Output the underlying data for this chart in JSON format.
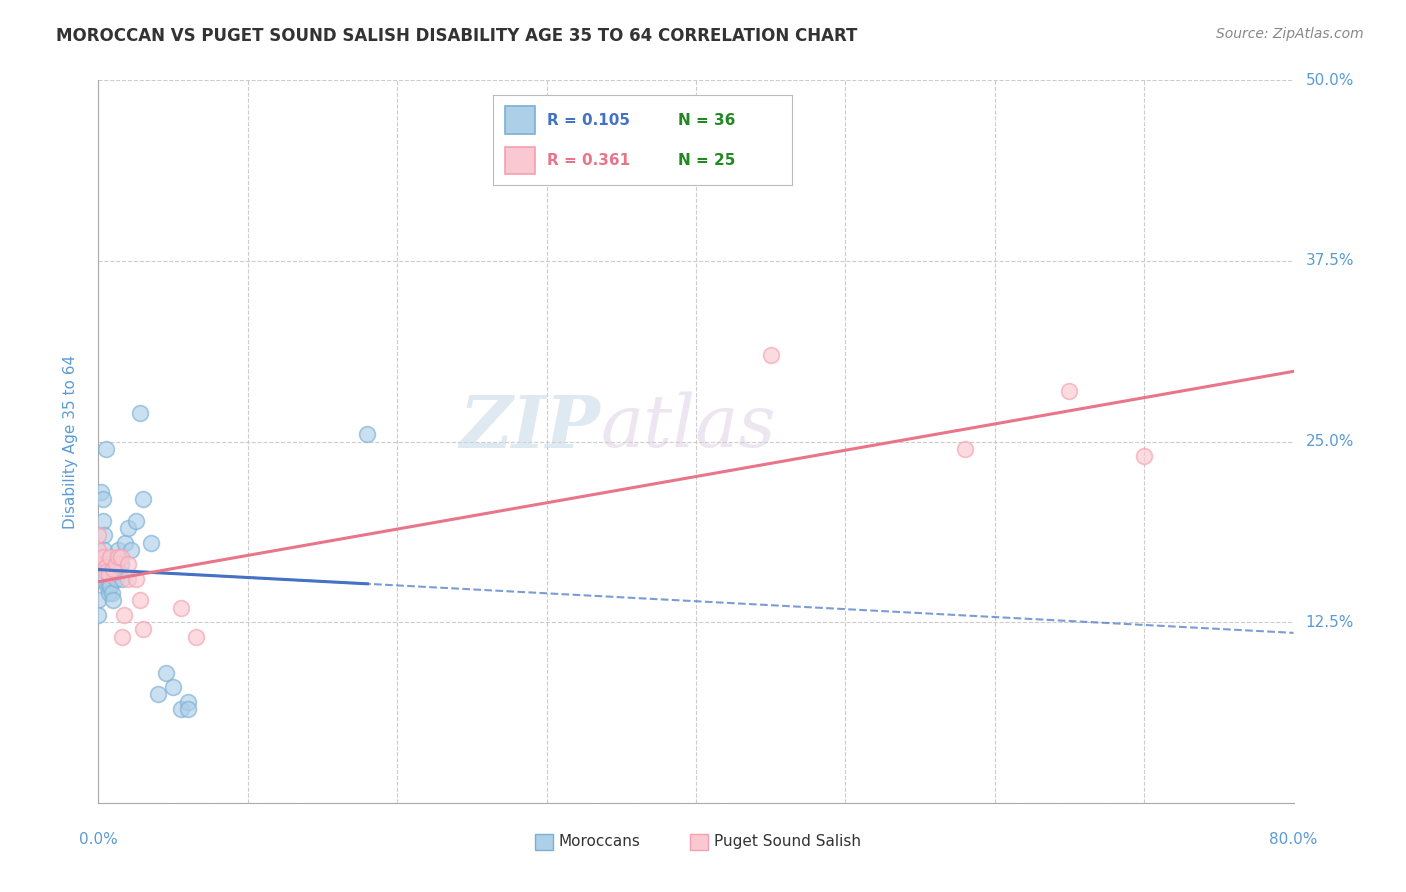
{
  "title": "MOROCCAN VS PUGET SOUND SALISH DISABILITY AGE 35 TO 64 CORRELATION CHART",
  "source": "Source: ZipAtlas.com",
  "ylabel": "Disability Age 35 to 64",
  "xlim": [
    0.0,
    0.8
  ],
  "ylim": [
    0.0,
    0.5
  ],
  "moroccan_color": "#7ab0d4",
  "moroccan_fill": "#aecfe8",
  "puget_color": "#f4a0b0",
  "puget_fill": "#f9c8d0",
  "moroccan_line_color": "#4472c4",
  "puget_line_color": "#e8758a",
  "r_moroccan": 0.105,
  "n_moroccan": 36,
  "r_puget": 0.361,
  "n_puget": 25,
  "moroccan_x": [
    0.0,
    0.0,
    0.0,
    0.002,
    0.003,
    0.003,
    0.004,
    0.004,
    0.005,
    0.005,
    0.006,
    0.007,
    0.007,
    0.008,
    0.009,
    0.01,
    0.01,
    0.012,
    0.013,
    0.014,
    0.015,
    0.016,
    0.018,
    0.02,
    0.022,
    0.025,
    0.028,
    0.03,
    0.035,
    0.04,
    0.045,
    0.05,
    0.055,
    0.06,
    0.06,
    0.18
  ],
  "moroccan_y": [
    0.155,
    0.14,
    0.13,
    0.215,
    0.21,
    0.195,
    0.185,
    0.175,
    0.245,
    0.165,
    0.15,
    0.15,
    0.145,
    0.15,
    0.145,
    0.14,
    0.16,
    0.155,
    0.175,
    0.16,
    0.165,
    0.155,
    0.18,
    0.19,
    0.175,
    0.195,
    0.27,
    0.21,
    0.18,
    0.075,
    0.09,
    0.08,
    0.065,
    0.07,
    0.065,
    0.255
  ],
  "puget_x": [
    0.0,
    0.0,
    0.0,
    0.003,
    0.005,
    0.005,
    0.007,
    0.008,
    0.01,
    0.012,
    0.013,
    0.015,
    0.016,
    0.017,
    0.02,
    0.02,
    0.025,
    0.028,
    0.03,
    0.055,
    0.065,
    0.45,
    0.58,
    0.65,
    0.7
  ],
  "puget_y": [
    0.165,
    0.175,
    0.185,
    0.17,
    0.163,
    0.16,
    0.158,
    0.17,
    0.162,
    0.165,
    0.17,
    0.17,
    0.115,
    0.13,
    0.165,
    0.155,
    0.155,
    0.14,
    0.12,
    0.135,
    0.115,
    0.31,
    0.245,
    0.285,
    0.24
  ],
  "background_color": "#ffffff",
  "grid_color": "#cccccc",
  "title_color": "#333333",
  "axis_label_color": "#5b9bd5",
  "watermark_zip": "ZIP",
  "watermark_atlas": "atlas"
}
